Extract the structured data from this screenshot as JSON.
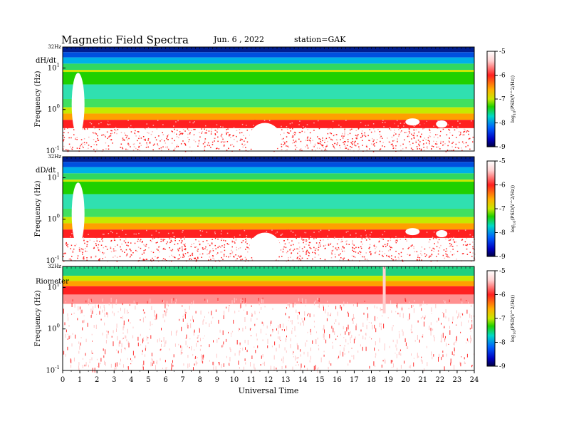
{
  "header": {
    "title": "Magnetic  Field  Spectra",
    "date": "Jun.  6  ,  2022",
    "station": "station=GAK"
  },
  "chart_data": [
    {
      "type": "heatmap",
      "panel_label": "dH/dt",
      "ylabel": "Frequency  (Hz)",
      "yscale": "log",
      "y_top_label": "32Hz",
      "y_ticks": [
        {
          "v": 10,
          "label": "10",
          "exp": "1"
        },
        {
          "v": 1,
          "label": "10",
          "exp": "0"
        },
        {
          "v": 0.1,
          "label": "10",
          "exp": "-1"
        }
      ],
      "ylim": [
        0.1,
        32
      ],
      "colorbar": {
        "ticks": [
          "-5",
          "-6",
          "-7",
          "-8",
          "-9"
        ],
        "label": "log10(PSD(V^2/Hz))",
        "range": [
          -9,
          -5
        ]
      }
    },
    {
      "type": "heatmap",
      "panel_label": "dD/dt",
      "ylabel": "Frequency  (Hz)",
      "yscale": "log",
      "y_top_label": "32Hz",
      "y_ticks": [
        {
          "v": 10,
          "label": "10",
          "exp": "1"
        },
        {
          "v": 1,
          "label": "10",
          "exp": "0"
        },
        {
          "v": 0.1,
          "label": "10",
          "exp": "-1"
        }
      ],
      "ylim": [
        0.1,
        32
      ],
      "colorbar": {
        "ticks": [
          "-5",
          "-6",
          "-7",
          "-8",
          "-9"
        ],
        "label": "log10(PSD(V^2/Hz))",
        "range": [
          -9,
          -5
        ]
      }
    },
    {
      "type": "heatmap",
      "panel_label": "Riometer",
      "ylabel": "Frequency  (Hz)",
      "yscale": "log",
      "y_top_label": "32Hz",
      "y_ticks": [
        {
          "v": 10,
          "label": "10",
          "exp": "1"
        },
        {
          "v": 1,
          "label": "10",
          "exp": "0"
        },
        {
          "v": 0.1,
          "label": "10",
          "exp": "-1"
        }
      ],
      "ylim": [
        0.1,
        32
      ],
      "colorbar": {
        "ticks": [
          "-5",
          "-6",
          "-7",
          "-8",
          "-9"
        ],
        "label": "log10(PSD(V^2/Hz))",
        "range": [
          -9,
          -5
        ]
      }
    }
  ],
  "x_axis": {
    "label": "Universal  Time",
    "ticks": [
      "0",
      "1",
      "2",
      "3",
      "4",
      "5",
      "6",
      "7",
      "8",
      "9",
      "10",
      "11",
      "12",
      "13",
      "14",
      "15",
      "16",
      "17",
      "18",
      "19",
      "20",
      "21",
      "22",
      "23",
      "24"
    ],
    "xlim": [
      0,
      24
    ]
  },
  "colorbar_label_parts": {
    "pre": "log",
    "sub": "10",
    "post": "(PSD(V^2/Hz))"
  },
  "colors": {
    "top_band": "#001a8c",
    "mid_band": "#00d2d2",
    "low_band": "#ff2020",
    "background": "#ffffff"
  }
}
